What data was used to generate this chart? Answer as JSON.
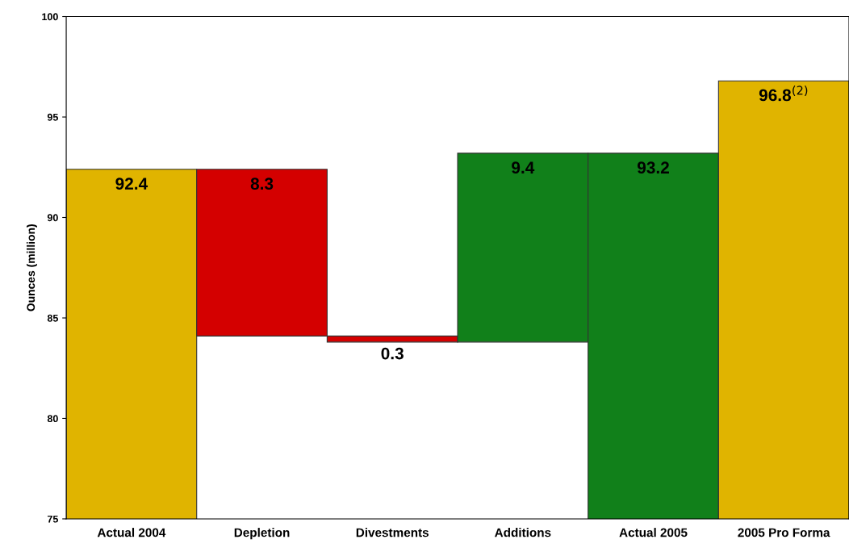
{
  "chart_data": {
    "type": "bar",
    "ylabel": "Ounces (million)",
    "categories": [
      "Actual 2004",
      "Depletion",
      "Divestments",
      "Additions",
      "Actual 2005",
      "2005 Pro Forma"
    ],
    "base": [
      null,
      92.4,
      84.1,
      83.8,
      null,
      null
    ],
    "values": [
      92.4,
      -8.3,
      -0.3,
      9.4,
      93.2,
      96.8
    ],
    "value_labels": [
      "92.4",
      "8.3",
      "0.3",
      "9.4",
      "93.2",
      "96.8$^{(2)}$"
    ],
    "colors": [
      "#e0b400",
      "#d40000",
      "#d40000",
      "#11801a",
      "#11801a",
      "#e0b400"
    ],
    "ylim": [
      75,
      100
    ],
    "yticks": [
      75,
      80,
      85,
      90,
      95,
      100
    ],
    "grid": false
  }
}
